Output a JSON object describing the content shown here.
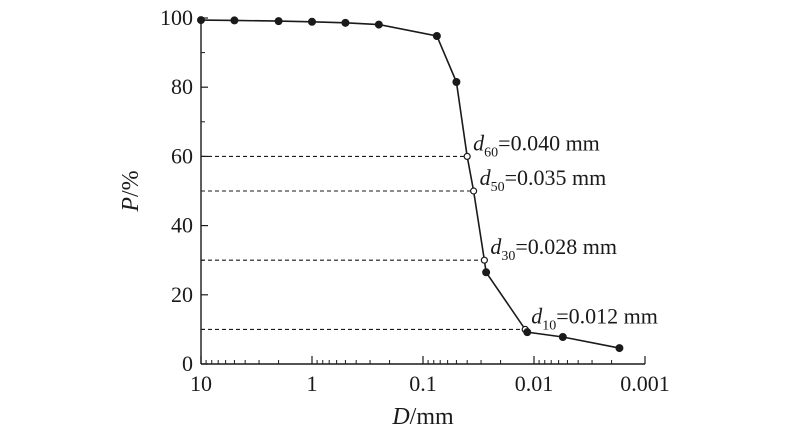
{
  "chart_data": {
    "type": "line",
    "xscale": "log",
    "x_reversed": true,
    "xlim": [
      10,
      0.001
    ],
    "ylim": [
      0,
      100
    ],
    "x_ticks": [
      10,
      1,
      0.1,
      0.01,
      0.001
    ],
    "x_tick_labels": [
      "10",
      "1",
      "0.1",
      "0.01",
      "0.001"
    ],
    "y_ticks": [
      0,
      20,
      40,
      60,
      80,
      100
    ],
    "y_tick_labels": [
      "0",
      "20",
      "40",
      "60",
      "80",
      "100"
    ],
    "xlabel": {
      "var": "D",
      "unit": "/mm"
    },
    "ylabel": {
      "var": "P",
      "unit": "/%"
    },
    "grid": false,
    "series": [
      {
        "x": [
          10,
          5,
          2,
          1,
          0.5,
          0.25,
          0.075,
          0.05,
          0.04,
          0.035,
          0.028,
          0.027,
          0.012,
          0.0115,
          0.0055,
          0.0017
        ],
        "y": [
          99.4,
          99.3,
          99.1,
          98.9,
          98.6,
          98.1,
          94.8,
          81.5,
          60,
          50,
          30,
          26.5,
          10,
          9.2,
          7.8,
          4.6
        ],
        "markers": [
          "filled",
          "filled",
          "filled",
          "filled",
          "filled",
          "filled",
          "filled",
          "filled",
          "open",
          "open",
          "open",
          "filled",
          "open",
          "filled",
          "filled",
          "filled"
        ]
      }
    ],
    "annotations": [
      {
        "d": "d",
        "sub": "60",
        "text": "=0.040 mm",
        "x": 0.04,
        "y": 60
      },
      {
        "d": "d",
        "sub": "50",
        "text": "=0.035 mm",
        "x": 0.035,
        "y": 50
      },
      {
        "d": "d",
        "sub": "30",
        "text": "=0.028 mm",
        "x": 0.028,
        "y": 30
      },
      {
        "d": "d",
        "sub": "10",
        "text": "=0.012 mm",
        "x": 0.012,
        "y": 10
      }
    ],
    "colors": {
      "line": "#1a1a1a",
      "axis": "#1a1a1a",
      "background": "#ffffff"
    }
  }
}
